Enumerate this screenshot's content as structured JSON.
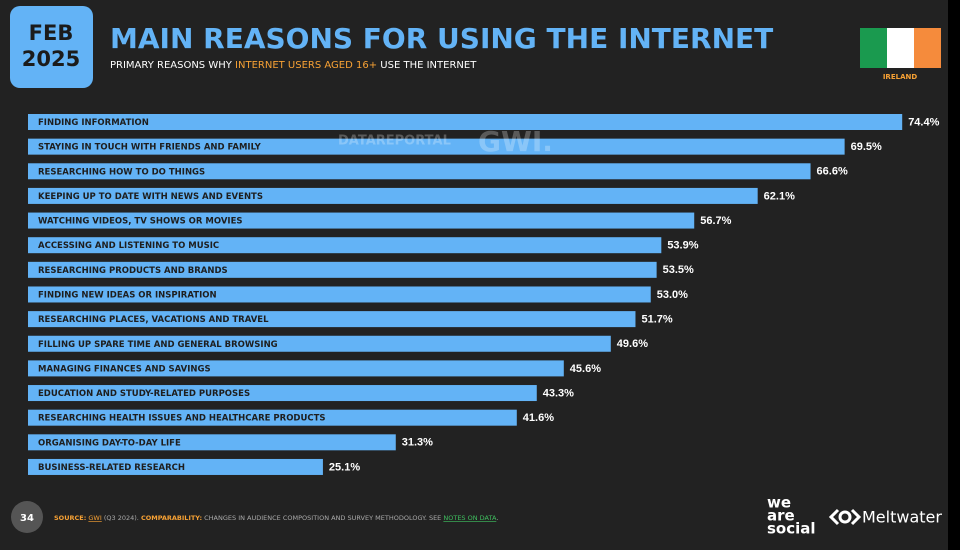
{
  "header": {
    "month": "FEB",
    "year": "2025",
    "country": "IRELAND"
  },
  "chart_data": {
    "type": "bar",
    "orientation": "horizontal",
    "title": "MAIN REASONS FOR USING THE INTERNET",
    "subtitle": [
      "PRIMARY REASONS WHY",
      "INTERNET USERS AGED 16+",
      "USE THE INTERNET"
    ],
    "categories": [
      "FINDING INFORMATION",
      "STAYING IN TOUCH WITH FRIENDS AND FAMILY",
      "RESEARCHING HOW TO DO THINGS",
      "KEEPING UP TO DATE WITH NEWS AND EVENTS",
      "WATCHING VIDEOS, TV SHOWS OR MOVIES",
      "ACCESSING AND LISTENING TO MUSIC",
      "RESEARCHING PRODUCTS AND BRANDS",
      "FINDING NEW IDEAS OR INSPIRATION",
      "RESEARCHING PLACES, VACATIONS AND TRAVEL",
      "FILLING UP SPARE TIME AND GENERAL BROWSING",
      "MANAGING FINANCES AND SAVINGS",
      "EDUCATION AND STUDY-RELATED PURPOSES",
      "RESEARCHING HEALTH ISSUES AND HEALTHCARE PRODUCTS",
      "ORGANISING DAY-TO-DAY LIFE",
      "BUSINESS-RELATED RESEARCH"
    ],
    "values": [
      74.4,
      69.5,
      66.6,
      62.1,
      56.7,
      53.9,
      53.5,
      53.0,
      51.7,
      49.6,
      45.6,
      43.3,
      41.6,
      31.3,
      25.1
    ],
    "value_labels": [
      "74.4%",
      "69.5%",
      "66.6%",
      "62.1%",
      "56.7%",
      "53.9%",
      "53.5%",
      "53.0%",
      "51.7%",
      "49.6%",
      "45.6%",
      "43.3%",
      "41.6%",
      "31.3%",
      "25.1%"
    ],
    "color": "#63b3f6"
  },
  "watermark": [
    "DATAREPORTAL",
    "GWI."
  ],
  "footer": {
    "page": "34",
    "source": [
      "SOURCE:",
      "GWI",
      "(Q3 2024).",
      "COMPARABILITY:",
      "CHANGES IN AUDIENCE COMPOSITION AND SURVEY METHODOLOGY. SEE",
      "NOTES ON DATA",
      "."
    ],
    "logos": [
      "we",
      "are",
      "social",
      "Meltwater"
    ]
  }
}
